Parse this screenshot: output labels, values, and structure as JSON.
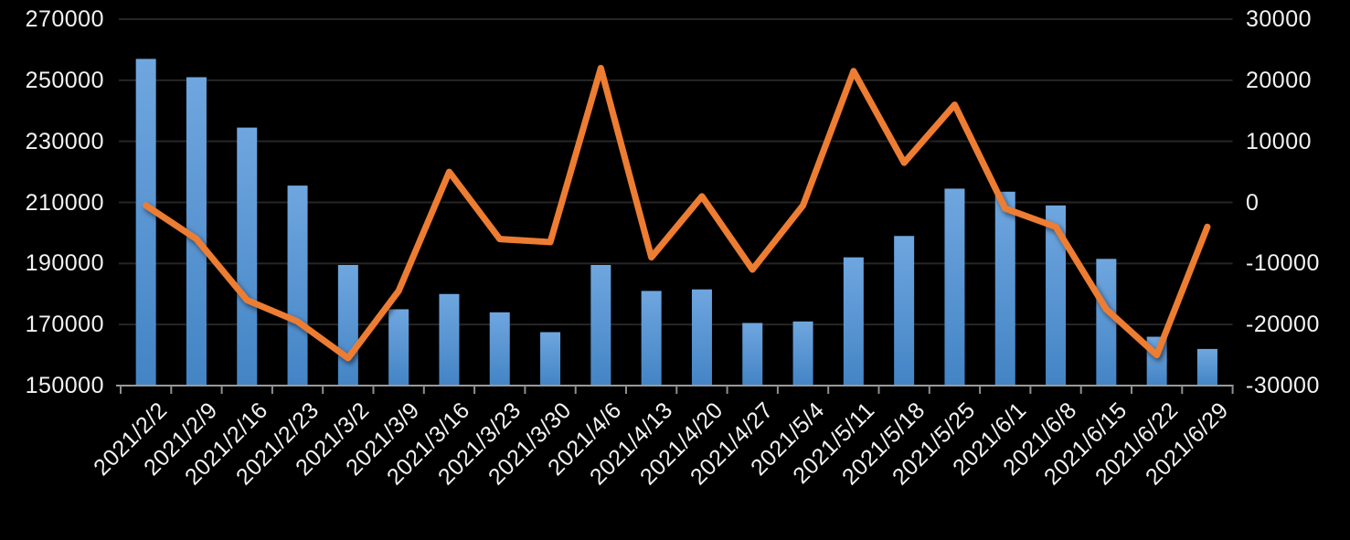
{
  "window": {
    "background": "#000000"
  },
  "chart_data": {
    "type": "combo",
    "title": "",
    "legend": "none",
    "categories": [
      "2021/2/2",
      "2021/2/9",
      "2021/2/16",
      "2021/2/23",
      "2021/3/2",
      "2021/3/9",
      "2021/3/16",
      "2021/3/23",
      "2021/3/30",
      "2021/4/6",
      "2021/4/13",
      "2021/4/20",
      "2021/4/27",
      "2021/5/4",
      "2021/5/11",
      "2021/5/18",
      "2021/5/25",
      "2021/6/1",
      "2021/6/8",
      "2021/6/15",
      "2021/6/22",
      "2021/6/29"
    ],
    "series": [
      {
        "name": "bar-series",
        "type": "bar",
        "y_axis": "left",
        "color_top": "#6FA6DF",
        "color_bottom": "#4384C5",
        "values": [
          257000,
          251000,
          234500,
          215500,
          189500,
          175000,
          180000,
          174000,
          167500,
          189500,
          181000,
          181500,
          170500,
          171000,
          192000,
          199000,
          214500,
          213500,
          209000,
          191500,
          166000,
          162000
        ]
      },
      {
        "name": "line-series",
        "type": "line",
        "y_axis": "right",
        "color": "#ED7D31",
        "values": [
          -500,
          -6000,
          -16000,
          -19500,
          -25500,
          -14500,
          5000,
          -6000,
          -6500,
          22000,
          -9000,
          1000,
          -11000,
          -500,
          21500,
          6500,
          16000,
          -1000,
          -4000,
          -17500,
          -25000,
          -4000
        ]
      }
    ],
    "left_axis": {
      "min": 150000,
      "max": 270000,
      "step": 20000,
      "tick_labels": [
        "270000",
        "250000",
        "230000",
        "210000",
        "190000",
        "170000",
        "150000"
      ]
    },
    "right_axis": {
      "min": -30000,
      "max": 30000,
      "step": 10000,
      "tick_labels": [
        "30000",
        "20000",
        "10000",
        "0",
        "-10000",
        "-20000",
        "-30000"
      ]
    },
    "grid": {
      "horizontal": true,
      "color": "#262626"
    },
    "axis_color": "#9A9A9A",
    "tick_color": "#8F8F8F",
    "text_color": "#F2F2F2"
  }
}
